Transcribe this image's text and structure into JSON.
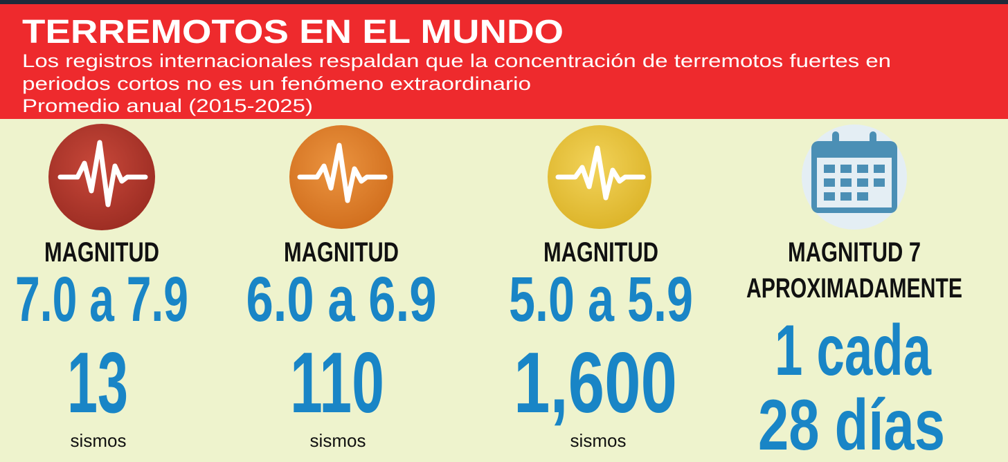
{
  "header": {
    "title": "TERREMOTOS EN EL MUNDO",
    "subtitle_lines": [
      "Los registros internacionales respaldan que la concentración de terremotos fuertes en",
      "periodos cortos no es un fenómeno extraordinario"
    ],
    "period": "Promedio anual (2015-2025)"
  },
  "columns": [
    {
      "label": "MAGNITUD",
      "range": "7.0 a 7.9",
      "count": "13",
      "unit": "sismos"
    },
    {
      "label": "MAGNITUD",
      "range": "6.0 a 6.9",
      "count": "110",
      "unit": "sismos"
    },
    {
      "label": "MAGNITUD",
      "range": "5.0 a 5.9",
      "count": "1,600",
      "unit": "sismos"
    },
    {
      "label": "MAGNITUD 7",
      "qualifier": "APROXIMADAMENTE",
      "frequency_lines": [
        "1 cada",
        "28 días"
      ]
    }
  ]
}
